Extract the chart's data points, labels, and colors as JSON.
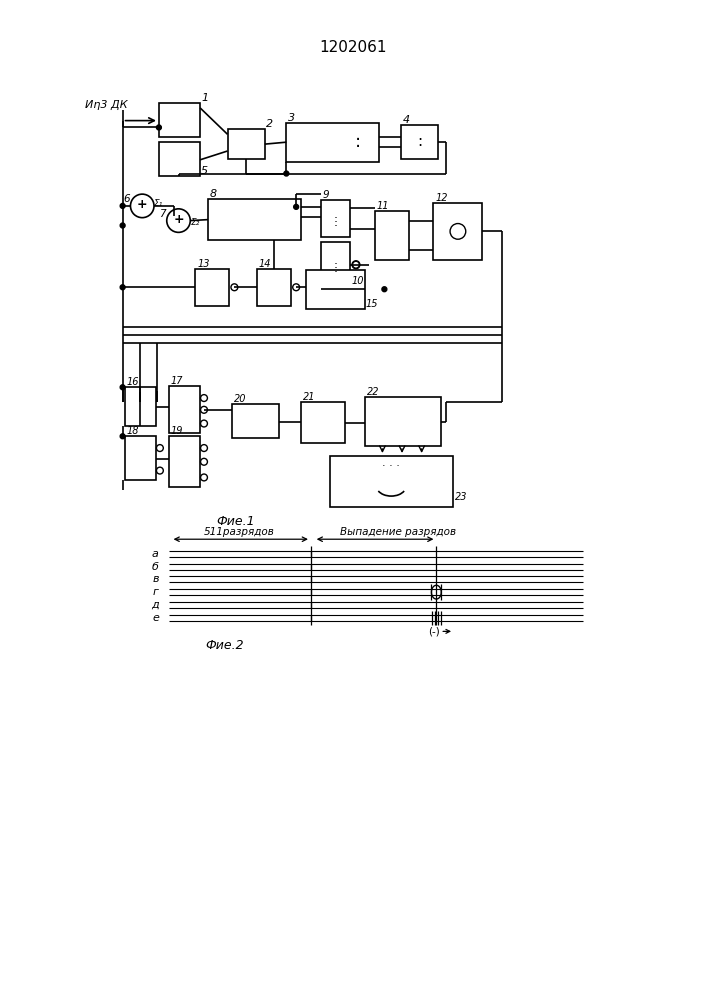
{
  "title": "1202061",
  "fig1_label": "Фие.1",
  "fig2_label": "Фие.2",
  "bg_color": "#ffffff",
  "input_label": "Иη3 ДК",
  "fig2_rows": [
    "а",
    "б",
    "в",
    "г",
    "д",
    "е"
  ],
  "fig2_arrow1": "511разрядов",
  "fig2_arrow2": "Выпадение разрядов",
  "fig2_minus": "(-)"
}
